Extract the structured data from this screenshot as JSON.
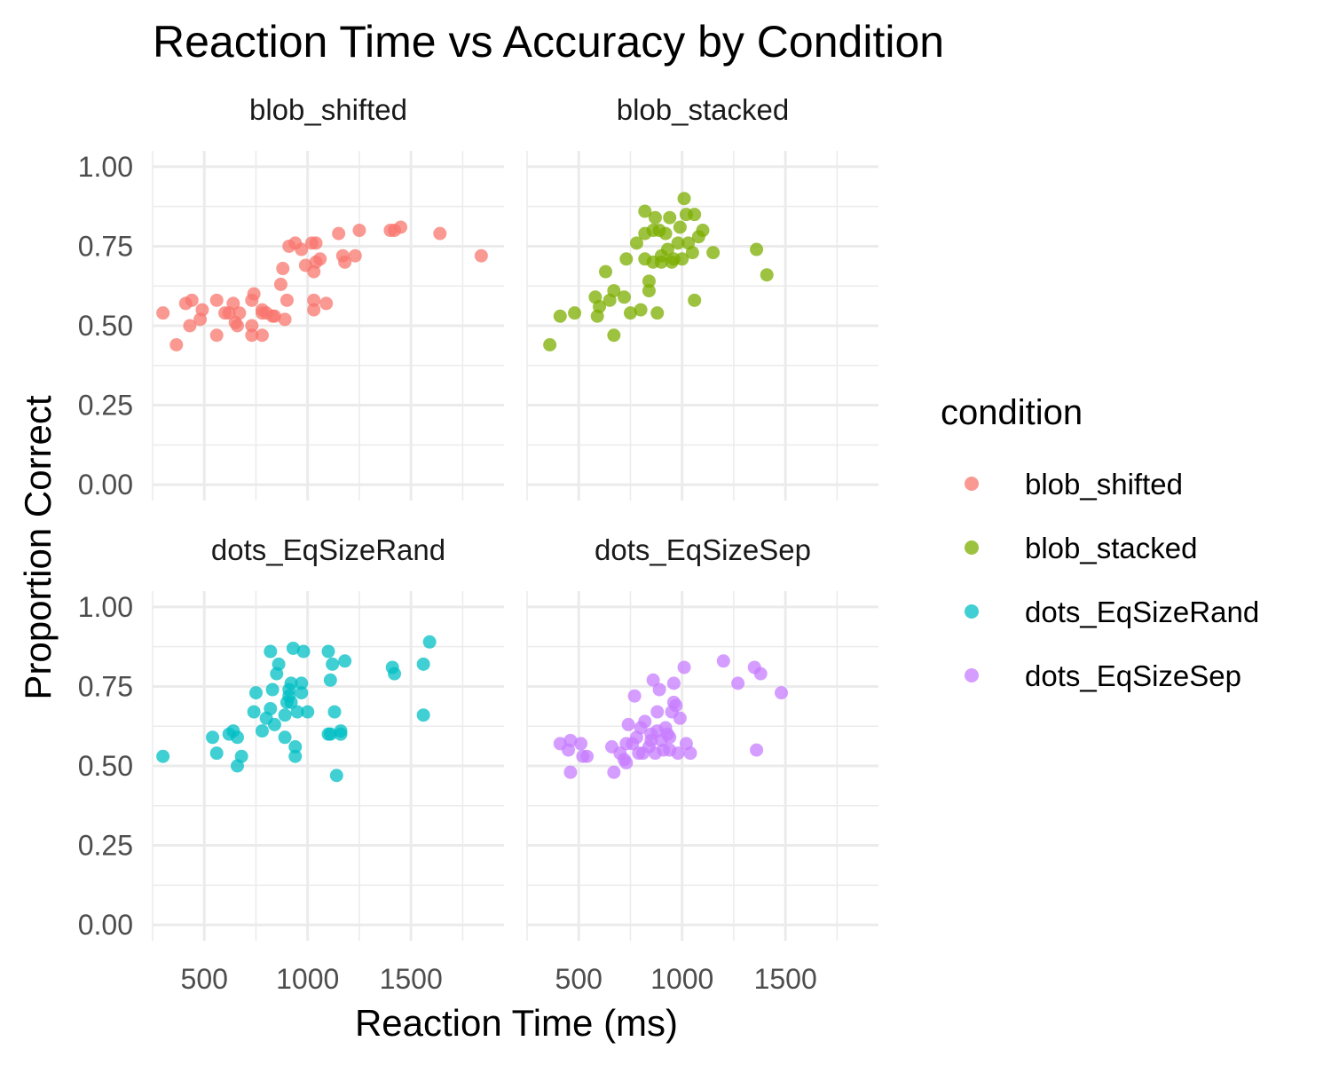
{
  "chart_data": {
    "type": "scatter",
    "title": "Reaction Time vs Accuracy by Condition",
    "xlabel": "Reaction Time (ms)",
    "ylabel": "Proportion Correct",
    "xlim": [
      250,
      1950
    ],
    "ylim": [
      -0.05,
      1.05
    ],
    "x_ticks": [
      500,
      1000,
      1500
    ],
    "y_ticks": [
      0.0,
      0.25,
      0.5,
      0.75,
      1.0
    ],
    "y_tick_labels": [
      "0.00",
      "0.25",
      "0.50",
      "0.75",
      "1.00"
    ],
    "grid": true,
    "legend": {
      "title": "condition",
      "position": "right"
    },
    "series": [
      {
        "name": "blob_shifted",
        "color": "#F8766D",
        "points": [
          [
            300,
            0.54
          ],
          [
            365,
            0.44
          ],
          [
            410,
            0.57
          ],
          [
            430,
            0.5
          ],
          [
            440,
            0.58
          ],
          [
            480,
            0.52
          ],
          [
            490,
            0.55
          ],
          [
            560,
            0.47
          ],
          [
            560,
            0.58
          ],
          [
            600,
            0.54
          ],
          [
            620,
            0.54
          ],
          [
            640,
            0.57
          ],
          [
            650,
            0.51
          ],
          [
            660,
            0.5
          ],
          [
            670,
            0.54
          ],
          [
            730,
            0.47
          ],
          [
            730,
            0.5
          ],
          [
            730,
            0.58
          ],
          [
            740,
            0.6
          ],
          [
            780,
            0.47
          ],
          [
            780,
            0.55
          ],
          [
            780,
            0.54
          ],
          [
            800,
            0.54
          ],
          [
            830,
            0.53
          ],
          [
            840,
            0.53
          ],
          [
            870,
            0.63
          ],
          [
            880,
            0.68
          ],
          [
            890,
            0.52
          ],
          [
            900,
            0.58
          ],
          [
            910,
            0.75
          ],
          [
            940,
            0.76
          ],
          [
            970,
            0.74
          ],
          [
            990,
            0.69
          ],
          [
            1020,
            0.76
          ],
          [
            1030,
            0.58
          ],
          [
            1030,
            0.55
          ],
          [
            1030,
            0.67
          ],
          [
            1040,
            0.76
          ],
          [
            1040,
            0.7
          ],
          [
            1060,
            0.71
          ],
          [
            1090,
            0.57
          ],
          [
            1150,
            0.79
          ],
          [
            1170,
            0.72
          ],
          [
            1180,
            0.7
          ],
          [
            1230,
            0.72
          ],
          [
            1250,
            0.8
          ],
          [
            1400,
            0.8
          ],
          [
            1420,
            0.8
          ],
          [
            1450,
            0.81
          ],
          [
            1640,
            0.79
          ],
          [
            1840,
            0.72
          ]
        ]
      },
      {
        "name": "blob_stacked",
        "color": "#7CAE00",
        "points": [
          [
            360,
            0.44
          ],
          [
            410,
            0.53
          ],
          [
            480,
            0.54
          ],
          [
            580,
            0.59
          ],
          [
            590,
            0.53
          ],
          [
            600,
            0.56
          ],
          [
            630,
            0.67
          ],
          [
            650,
            0.58
          ],
          [
            670,
            0.47
          ],
          [
            670,
            0.61
          ],
          [
            720,
            0.59
          ],
          [
            730,
            0.71
          ],
          [
            750,
            0.54
          ],
          [
            780,
            0.76
          ],
          [
            800,
            0.55
          ],
          [
            820,
            0.86
          ],
          [
            820,
            0.79
          ],
          [
            820,
            0.71
          ],
          [
            840,
            0.64
          ],
          [
            840,
            0.61
          ],
          [
            860,
            0.8
          ],
          [
            860,
            0.7
          ],
          [
            870,
            0.84
          ],
          [
            880,
            0.54
          ],
          [
            890,
            0.8
          ],
          [
            900,
            0.72
          ],
          [
            900,
            0.7
          ],
          [
            920,
            0.79
          ],
          [
            930,
            0.74
          ],
          [
            940,
            0.84
          ],
          [
            950,
            0.7
          ],
          [
            960,
            0.71
          ],
          [
            980,
            0.76
          ],
          [
            990,
            0.81
          ],
          [
            1000,
            0.71
          ],
          [
            1010,
            0.9
          ],
          [
            1020,
            0.85
          ],
          [
            1030,
            0.76
          ],
          [
            1050,
            0.73
          ],
          [
            1060,
            0.85
          ],
          [
            1060,
            0.58
          ],
          [
            1080,
            0.78
          ],
          [
            1100,
            0.8
          ],
          [
            1150,
            0.73
          ],
          [
            1360,
            0.74
          ],
          [
            1410,
            0.66
          ]
        ]
      },
      {
        "name": "dots_EqSizeRand",
        "color": "#00BFC4",
        "points": [
          [
            300,
            0.53
          ],
          [
            540,
            0.59
          ],
          [
            560,
            0.54
          ],
          [
            620,
            0.6
          ],
          [
            640,
            0.61
          ],
          [
            660,
            0.59
          ],
          [
            660,
            0.5
          ],
          [
            680,
            0.53
          ],
          [
            740,
            0.67
          ],
          [
            750,
            0.73
          ],
          [
            780,
            0.61
          ],
          [
            800,
            0.65
          ],
          [
            820,
            0.68
          ],
          [
            820,
            0.86
          ],
          [
            830,
            0.74
          ],
          [
            840,
            0.63
          ],
          [
            850,
            0.79
          ],
          [
            860,
            0.82
          ],
          [
            890,
            0.66
          ],
          [
            890,
            0.59
          ],
          [
            900,
            0.7
          ],
          [
            910,
            0.74
          ],
          [
            910,
            0.72
          ],
          [
            920,
            0.7
          ],
          [
            920,
            0.76
          ],
          [
            930,
            0.87
          ],
          [
            940,
            0.56
          ],
          [
            940,
            0.53
          ],
          [
            950,
            0.67
          ],
          [
            970,
            0.76
          ],
          [
            970,
            0.73
          ],
          [
            980,
            0.86
          ],
          [
            1000,
            0.67
          ],
          [
            1100,
            0.86
          ],
          [
            1100,
            0.6
          ],
          [
            1110,
            0.77
          ],
          [
            1110,
            0.6
          ],
          [
            1120,
            0.82
          ],
          [
            1130,
            0.67
          ],
          [
            1140,
            0.47
          ],
          [
            1160,
            0.61
          ],
          [
            1160,
            0.6
          ],
          [
            1180,
            0.83
          ],
          [
            1410,
            0.81
          ],
          [
            1420,
            0.79
          ],
          [
            1560,
            0.82
          ],
          [
            1560,
            0.66
          ],
          [
            1590,
            0.89
          ]
        ]
      },
      {
        "name": "dots_EqSizeSep",
        "color": "#C77CFF",
        "points": [
          [
            410,
            0.57
          ],
          [
            450,
            0.55
          ],
          [
            460,
            0.48
          ],
          [
            460,
            0.58
          ],
          [
            510,
            0.57
          ],
          [
            520,
            0.53
          ],
          [
            540,
            0.53
          ],
          [
            660,
            0.56
          ],
          [
            670,
            0.48
          ],
          [
            700,
            0.54
          ],
          [
            720,
            0.52
          ],
          [
            730,
            0.51
          ],
          [
            730,
            0.57
          ],
          [
            740,
            0.63
          ],
          [
            760,
            0.57
          ],
          [
            770,
            0.72
          ],
          [
            780,
            0.59
          ],
          [
            790,
            0.54
          ],
          [
            800,
            0.62
          ],
          [
            810,
            0.54
          ],
          [
            820,
            0.64
          ],
          [
            840,
            0.56
          ],
          [
            850,
            0.6
          ],
          [
            850,
            0.58
          ],
          [
            860,
            0.77
          ],
          [
            870,
            0.54
          ],
          [
            880,
            0.67
          ],
          [
            880,
            0.61
          ],
          [
            890,
            0.74
          ],
          [
            900,
            0.58
          ],
          [
            910,
            0.55
          ],
          [
            920,
            0.62
          ],
          [
            930,
            0.6
          ],
          [
            940,
            0.55
          ],
          [
            940,
            0.59
          ],
          [
            950,
            0.67
          ],
          [
            960,
            0.7
          ],
          [
            960,
            0.76
          ],
          [
            970,
            0.69
          ],
          [
            980,
            0.54
          ],
          [
            990,
            0.65
          ],
          [
            1010,
            0.81
          ],
          [
            1020,
            0.57
          ],
          [
            1040,
            0.54
          ],
          [
            1200,
            0.83
          ],
          [
            1270,
            0.76
          ],
          [
            1350,
            0.81
          ],
          [
            1360,
            0.55
          ],
          [
            1380,
            0.79
          ],
          [
            1480,
            0.73
          ]
        ]
      }
    ]
  }
}
